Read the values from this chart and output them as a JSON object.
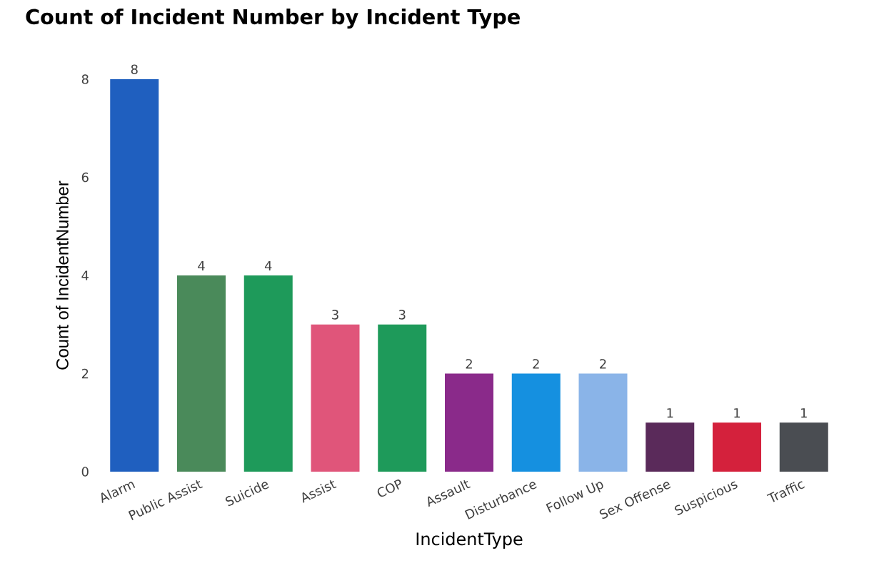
{
  "chart_data": {
    "type": "bar",
    "title": "Count of Incident Number by Incident Type",
    "xlabel": "IncidentType",
    "ylabel": "Count of IncidentNumber",
    "categories": [
      "Alarm",
      "Public Assist",
      "Suicide",
      "Assist",
      "COP",
      "Assault",
      "Disturbance",
      "Follow Up",
      "Sex Offense",
      "Suspicious",
      "Traffic"
    ],
    "values": [
      8,
      4,
      4,
      3,
      3,
      2,
      2,
      2,
      1,
      1,
      1
    ],
    "colors": [
      "#1f5fbf",
      "#4a8a5a",
      "#1e9a5a",
      "#e0557a",
      "#1e9a5a",
      "#8a2a8a",
      "#1590e0",
      "#8ab4e8",
      "#5a2a5a",
      "#d4213c",
      "#4a4d52"
    ],
    "ylim": [
      0,
      8
    ],
    "yticks": [
      0,
      2,
      4,
      6,
      8
    ],
    "grid": false,
    "data_labels": true
  }
}
